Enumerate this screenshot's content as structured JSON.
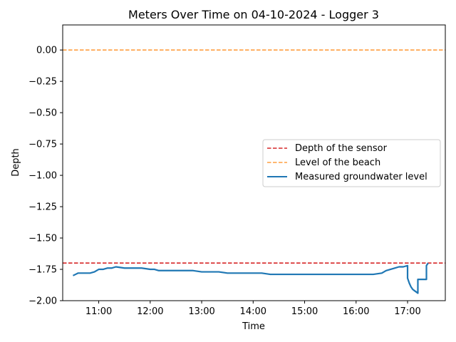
{
  "chart_data": {
    "type": "line",
    "title": "Meters Over Time on 04-10-2024 - Logger 3",
    "xlabel": "Time",
    "ylabel": "Depth",
    "xlim": [
      "10:18",
      "17:44"
    ],
    "ylim": [
      -2.0,
      0.2
    ],
    "x_ticks": [
      "11:00",
      "12:00",
      "13:00",
      "14:00",
      "15:00",
      "16:00",
      "17:00"
    ],
    "y_ticks": [
      0.0,
      -0.25,
      -0.5,
      -0.75,
      -1.0,
      -1.25,
      -1.5,
      -1.75,
      -2.0
    ],
    "y_tick_labels": [
      "0.00",
      "−0.25",
      "−0.50",
      "−0.75",
      "−1.00",
      "−1.25",
      "−1.50",
      "−1.75",
      "−2.00"
    ],
    "grid": false,
    "legend_position": "center-right",
    "reference_lines": [
      {
        "name": "Depth of the sensor",
        "y": -1.7,
        "color": "#d62728",
        "style": "dashed"
      },
      {
        "name": "Level of the beach",
        "y": 0.0,
        "color": "#ff9f40",
        "style": "dashed"
      }
    ],
    "series": [
      {
        "name": "Measured groundwater level",
        "color": "#1f77b4",
        "x": [
          "10:30",
          "10:33",
          "10:36",
          "10:40",
          "10:45",
          "10:50",
          "10:55",
          "11:00",
          "11:05",
          "11:10",
          "11:15",
          "11:20",
          "11:30",
          "11:40",
          "11:50",
          "12:00",
          "12:05",
          "12:10",
          "12:15",
          "12:20",
          "12:30",
          "12:40",
          "12:50",
          "13:00",
          "13:10",
          "13:20",
          "13:30",
          "13:40",
          "13:50",
          "14:00",
          "14:10",
          "14:20",
          "14:30",
          "14:40",
          "14:50",
          "15:00",
          "15:10",
          "15:20",
          "15:30",
          "15:40",
          "15:50",
          "16:00",
          "16:10",
          "16:20",
          "16:30",
          "16:35",
          "16:40",
          "16:45",
          "16:50",
          "16:55",
          "17:00",
          "17:00",
          "17:02",
          "17:04",
          "17:06",
          "17:08",
          "17:10",
          "17:12",
          "17:12",
          "17:14",
          "17:18",
          "17:22",
          "17:22",
          "17:24"
        ],
        "y": [
          -1.8,
          -1.79,
          -1.78,
          -1.78,
          -1.78,
          -1.78,
          -1.77,
          -1.75,
          -1.75,
          -1.74,
          -1.74,
          -1.73,
          -1.74,
          -1.74,
          -1.74,
          -1.75,
          -1.75,
          -1.76,
          -1.76,
          -1.76,
          -1.76,
          -1.76,
          -1.76,
          -1.77,
          -1.77,
          -1.77,
          -1.78,
          -1.78,
          -1.78,
          -1.78,
          -1.78,
          -1.79,
          -1.79,
          -1.79,
          -1.79,
          -1.79,
          -1.79,
          -1.79,
          -1.79,
          -1.79,
          -1.79,
          -1.79,
          -1.79,
          -1.79,
          -1.78,
          -1.76,
          -1.75,
          -1.74,
          -1.73,
          -1.73,
          -1.72,
          -1.82,
          -1.86,
          -1.89,
          -1.91,
          -1.92,
          -1.93,
          -1.94,
          -1.83,
          -1.83,
          -1.83,
          -1.83,
          -1.72,
          -1.7
        ]
      }
    ]
  }
}
